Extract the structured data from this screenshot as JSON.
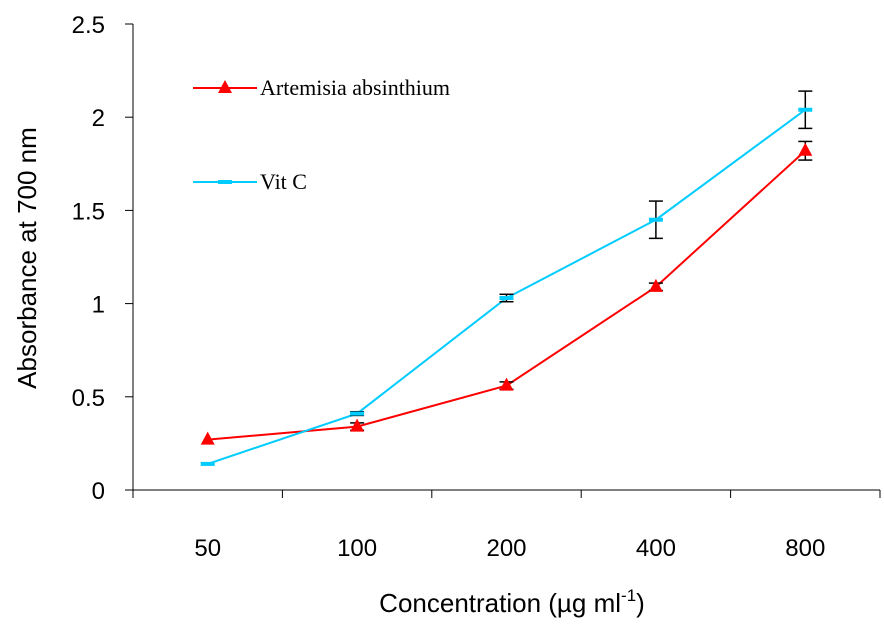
{
  "chart_data": {
    "type": "line",
    "title": "",
    "xlabel": "Concentration (µg ml",
    "xlabel_sup": "-1",
    "xlabel_suffix": ")",
    "ylabel": "Absorbance at 700 nm",
    "categories": [
      "50",
      "100",
      "200",
      "400",
      "800"
    ],
    "ylim": [
      0,
      2.5
    ],
    "yticks": [
      "0",
      "0.5",
      "1",
      "1.5",
      "2",
      "2.5"
    ],
    "grid": false,
    "legend": "top-left",
    "series": [
      {
        "name": "Artemisia absinthium",
        "color": "#ff0000",
        "marker": "triangle",
        "values": [
          0.27,
          0.34,
          0.56,
          1.09,
          1.82
        ],
        "errors": [
          0.0,
          0.02,
          0.02,
          0.02,
          0.05
        ]
      },
      {
        "name": "Vit C",
        "color": "#00ccff",
        "marker": "dash",
        "values": [
          0.14,
          0.41,
          1.03,
          1.45,
          2.04
        ],
        "errors": [
          0.0,
          0.01,
          0.02,
          0.1,
          0.1
        ]
      }
    ]
  }
}
